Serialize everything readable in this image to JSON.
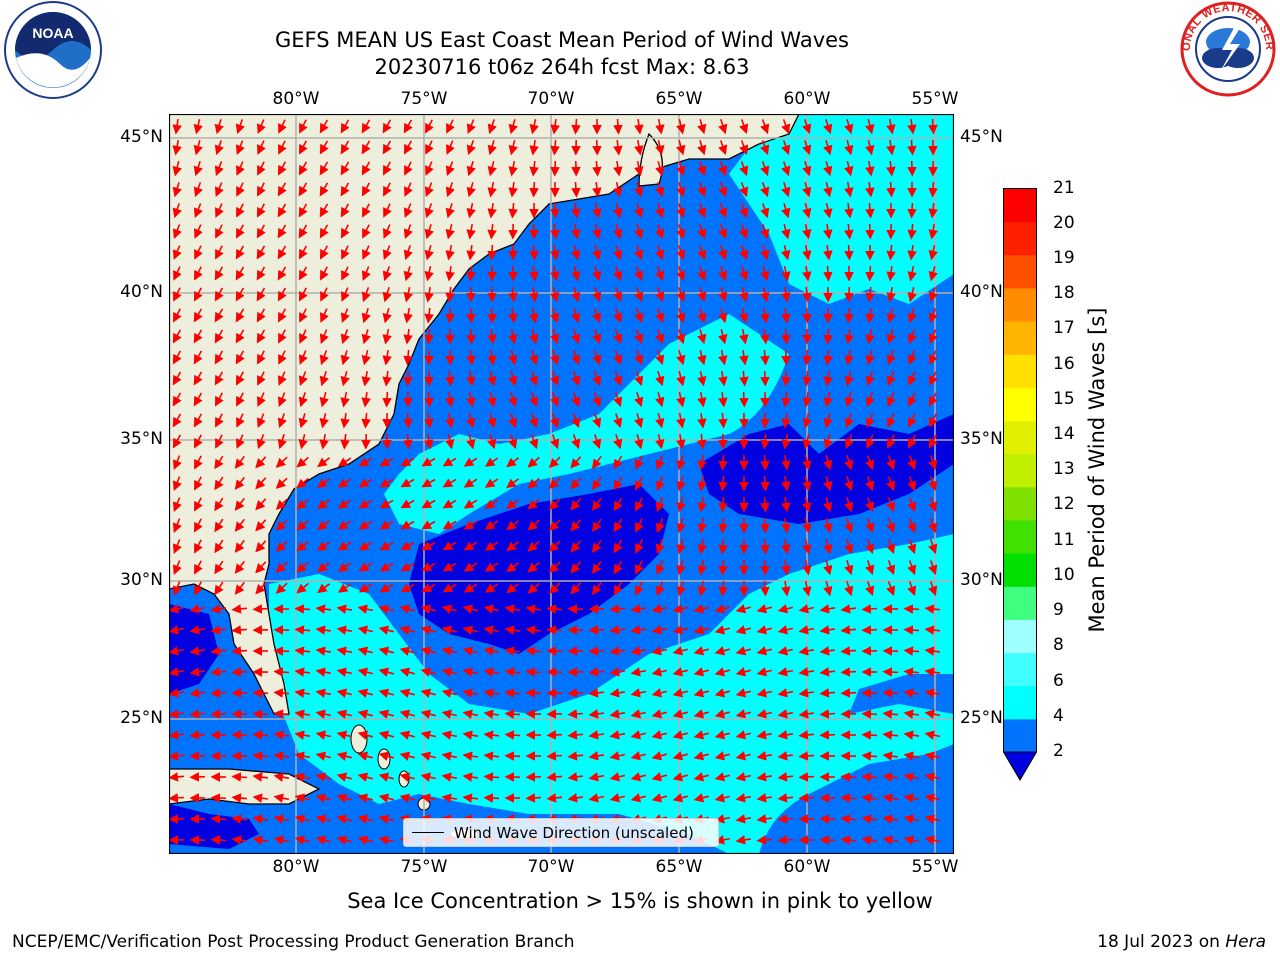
{
  "title": {
    "line1": "GEFS MEAN US East Coast Mean Period of Wind Waves",
    "line2": "20230716 t06z 264h fcst   Max: 8.63"
  },
  "map": {
    "lon_range": [
      -85,
      -54.5
    ],
    "lat_range": [
      20.5,
      46
    ],
    "lon_ticks": [
      "80°W",
      "75°W",
      "70°W",
      "65°W",
      "60°W",
      "55°W"
    ],
    "lat_ticks": [
      "45°N",
      "40°N",
      "35°N",
      "30°N",
      "25°N"
    ],
    "grid": true,
    "land_color": "#eeeedc",
    "coast_color": "#000000",
    "arrow_color": "#ff0000",
    "grid_color": "#b0b0b0"
  },
  "colorbar": {
    "label": "Mean Period of Wind Waves [s]",
    "ticks": [
      "21",
      "20",
      "19",
      "18",
      "17",
      "16",
      "15",
      "14",
      "13",
      "12",
      "11",
      "10",
      "9",
      "8",
      "6",
      "4",
      "2"
    ],
    "colors_bottom_to_top": [
      "#0073ff",
      "#00ffff",
      "#40ffff",
      "#a0ffff",
      "#40ff80",
      "#00e000",
      "#40e000",
      "#80e000",
      "#c0f000",
      "#e0f000",
      "#ffff00",
      "#ffe000",
      "#ffb400",
      "#ff8c00",
      "#ff5000",
      "#ff2000",
      "#ff0000"
    ],
    "extend_color": "#0000e0"
  },
  "legend": {
    "label": "Wind Wave Direction (unscaled)"
  },
  "note": "Sea Ice Concentration > 15% is shown in pink to yellow",
  "footer": {
    "left": "NCEP/EMC/Verification Post Processing Product Generation Branch",
    "right_date": "18 Jul 2023 on ",
    "right_host": "Hera"
  },
  "logos": {
    "left": "NOAA",
    "right": "NATIONAL WEATHER SERVICE"
  }
}
